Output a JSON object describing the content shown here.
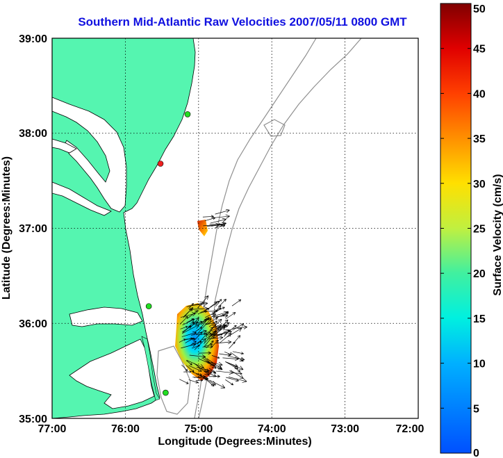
{
  "chart_data": {
    "type": "heatmap",
    "title": "Southern Mid-Atlantic Raw Velocities 2007/05/11 0800 GMT",
    "xlabel": "Longitude (Degrees:Minutes)",
    "ylabel": "Latitude (Degrees:Minutes)",
    "xlim": [
      -77,
      -72
    ],
    "ylim": [
      35,
      39
    ],
    "x_ticks": [
      "77:00",
      "76:00",
      "75:00",
      "74:00",
      "73:00",
      "72:00"
    ],
    "y_ticks": [
      "35:00",
      "36:00",
      "37:00",
      "38:00",
      "39:00"
    ],
    "grid": true,
    "colorbar": {
      "label": "Surface Velocity (cm/s)",
      "range": [
        0,
        50
      ],
      "ticks": [
        "0",
        "5",
        "10",
        "15",
        "20",
        "25",
        "30",
        "35",
        "40",
        "45",
        "50"
      ]
    },
    "stations": [
      {
        "lon": -75.15,
        "lat": 38.2,
        "color": "#22dd22"
      },
      {
        "lon": -75.52,
        "lat": 37.68,
        "color": "#ee2020"
      },
      {
        "lon": -75.68,
        "lat": 36.18,
        "color": "#22dd22"
      },
      {
        "lon": -75.45,
        "lat": 35.27,
        "color": "#22dd22"
      }
    ]
  }
}
